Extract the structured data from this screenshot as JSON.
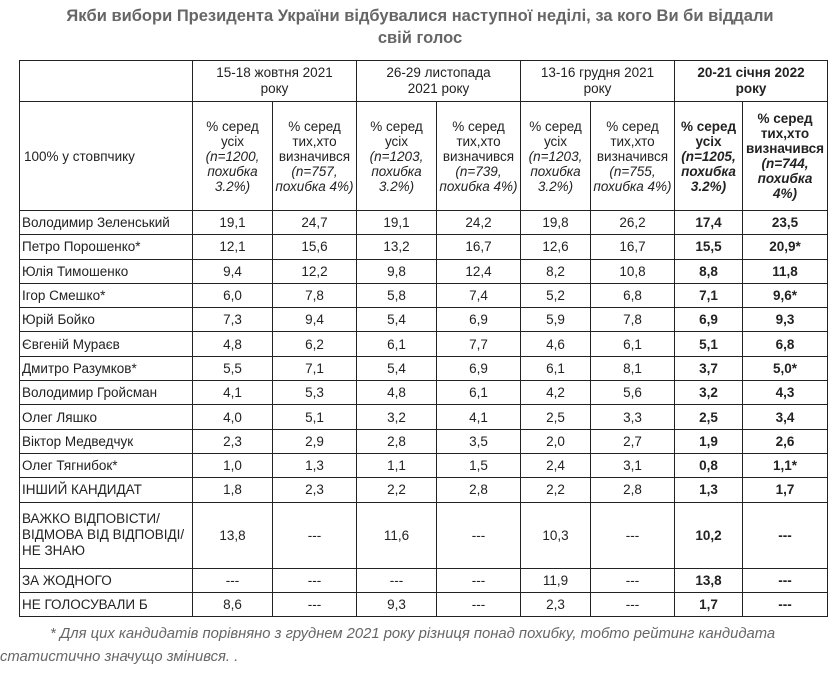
{
  "title_line1": "Якби вибори Президента України відбувалися наступної неділі, за кого Ви би віддали",
  "title_line2": "свій голос",
  "row_label_header": "100% у стовпчику",
  "periods": [
    {
      "line1": "15-18 жовтня 2021",
      "line2": "року"
    },
    {
      "line1": "26-29 листопада",
      "line2": "2021 року"
    },
    {
      "line1": "13-16 грудня 2021",
      "line2": "року"
    },
    {
      "line1": "20-21 січня 2022",
      "line2": "року"
    }
  ],
  "subheaders": [
    {
      "label": "% серед усіх",
      "note": "(n=1200, похибка 3.2%)"
    },
    {
      "label": "% серед тих,хто визначився",
      "note": "(n=757, похибка 4%)"
    },
    {
      "label": "% серед усіх",
      "note": "(n=1203, похибка 3.2%)"
    },
    {
      "label": "% серед тих,хто визначився",
      "note": "(n=739, похибка 4%)"
    },
    {
      "label": "% серед усіх",
      "note": "(n=1203, похибка 3.2%)"
    },
    {
      "label": "% серед тих,хто визначився",
      "note": "(n=755, похибка 4%)"
    },
    {
      "label": "% серед усіх",
      "note": "(n=1205, похибка 3.2%)"
    },
    {
      "label": "% серед тих,хто визначився",
      "note": "(n=744, похибка 4%)"
    }
  ],
  "rows": [
    {
      "name": "Володимир Зеленський",
      "values": [
        "19,1",
        "24,7",
        "19,1",
        "24,2",
        "19,8",
        "26,2",
        "17,4",
        "23,5"
      ]
    },
    {
      "name": "Петро Порошенко*",
      "values": [
        "12,1",
        "15,6",
        "13,2",
        "16,7",
        "12,6",
        "16,7",
        "15,5",
        "20,9*"
      ]
    },
    {
      "name": "Юлія Тимошенко",
      "values": [
        "9,4",
        "12,2",
        "9,8",
        "12,4",
        "8,2",
        "10,8",
        "8,8",
        "11,8"
      ]
    },
    {
      "name": "Ігор Смешко*",
      "values": [
        "6,0",
        "7,8",
        "5,8",
        "7,4",
        "5,2",
        "6,8",
        "7,1",
        "9,6*"
      ]
    },
    {
      "name": "Юрій Бойко",
      "values": [
        "7,3",
        "9,4",
        "5,4",
        "6,9",
        "5,9",
        "7,8",
        "6,9",
        "9,3"
      ]
    },
    {
      "name": "Євгеній Мураєв",
      "values": [
        "4,8",
        "6,2",
        "6,1",
        "7,7",
        "4,6",
        "6,1",
        "5,1",
        "6,8"
      ]
    },
    {
      "name": "Дмитро Разумков*",
      "values": [
        "5,5",
        "7,1",
        "5,4",
        "6,9",
        "6,1",
        "8,1",
        "3,7",
        "5,0*"
      ]
    },
    {
      "name": "Володимир Гройсман",
      "values": [
        "4,1",
        "5,3",
        "4,8",
        "6,1",
        "4,2",
        "5,6",
        "3,2",
        "4,3"
      ]
    },
    {
      "name": "Олег Ляшко",
      "values": [
        "4,0",
        "5,1",
        "3,2",
        "4,1",
        "2,5",
        "3,3",
        "2,5",
        "3,4"
      ]
    },
    {
      "name": "Віктор Медведчук",
      "values": [
        "2,3",
        "2,9",
        "2,8",
        "3,5",
        "2,0",
        "2,7",
        "1,9",
        "2,6"
      ]
    },
    {
      "name": "Олег Тягнибок*",
      "values": [
        "1,0",
        "1,3",
        "1,1",
        "1,5",
        "2,4",
        "3,1",
        "0,8",
        "1,1*"
      ]
    },
    {
      "name": "ІНШИЙ КАНДИДАТ",
      "values": [
        "1,8",
        "2,3",
        "2,2",
        "2,8",
        "2,2",
        "2,8",
        "1,3",
        "1,7"
      ]
    },
    {
      "name": "ВАЖКО ВІДПОВІСТИ/ ВІДМОВА ВІД ВІДПОВІДІ/ НЕ ЗНАЮ",
      "values": [
        "13,8",
        "---",
        "11,6",
        "---",
        "10,3",
        "---",
        "10,2",
        "---"
      ]
    },
    {
      "name": "ЗА ЖОДНОГО",
      "values": [
        "---",
        "---",
        "---",
        "---",
        "11,9",
        "---",
        "13,8",
        "---"
      ]
    },
    {
      "name": "НЕ ГОЛОСУВАЛИ Б",
      "values": [
        "8,6",
        "---",
        "9,3",
        "---",
        "2,3",
        "---",
        "1,7",
        "---"
      ]
    }
  ],
  "footnote": "* Для цих кандидатів порівняно з груднем 2021 року різниця понад похибку, тобто рейтинг кандидата статистично значущо змінився. ."
}
